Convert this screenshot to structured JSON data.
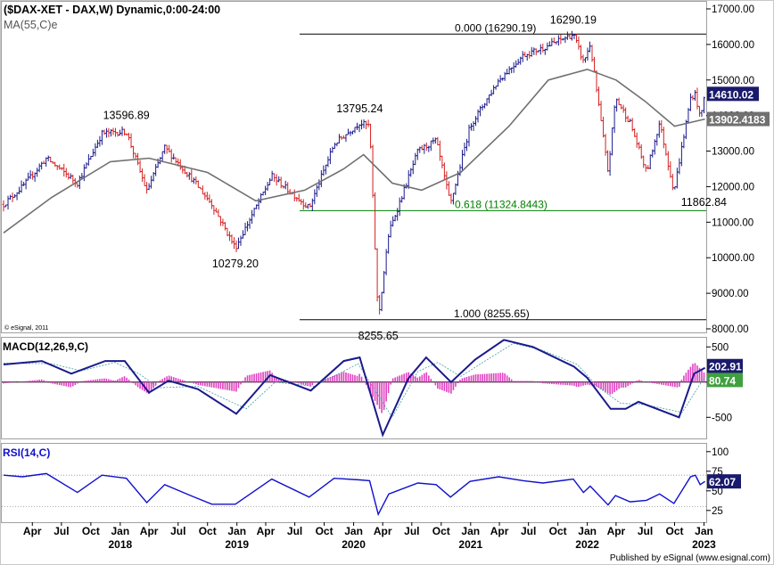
{
  "header": {
    "title": "($DAX-XET - DAX,W) Dynamic,0:00-24:00",
    "ma_label": "MA(55,C)e",
    "copyright": "© eSignal, 2011",
    "published": "Published by eSignal (www.esignal.com)"
  },
  "colors": {
    "up_bar": "#1a1a8c",
    "down_bar": "#d42020",
    "ma_line": "#707070",
    "fib_green": "#008000",
    "macd_line": "#1a1a8c",
    "macd_hist": "#e040c0",
    "rsi_line": "#1010cc",
    "label_box": "#1a1a6c"
  },
  "chart_data": [
    {
      "type": "candlestick",
      "name": "price",
      "ylim": [
        7900,
        17200
      ],
      "y_ticks": [
        8000,
        9000,
        10000,
        11000,
        12000,
        13000,
        14000,
        15000,
        16000,
        17000
      ],
      "y_tick_labels": [
        "8000.00",
        "9000.00",
        "10000.00",
        "11000.00",
        "12000.00",
        "13000.00",
        "14000.00",
        "15000.00",
        "16000.00",
        "17000.00"
      ],
      "x_range": [
        "2017-01-01",
        "2023-01-08"
      ],
      "price_path": [
        [
          "2017-01-01",
          11500
        ],
        [
          "2017-03-01",
          12000
        ],
        [
          "2017-05-15",
          12800
        ],
        [
          "2017-08-20",
          12100
        ],
        [
          "2017-11-05",
          13500
        ],
        [
          "2018-01-20",
          13550
        ],
        [
          "2018-03-25",
          11870
        ],
        [
          "2018-05-20",
          13100
        ],
        [
          "2018-08-15",
          12200
        ],
        [
          "2018-10-15",
          11500
        ],
        [
          "2018-12-27",
          10279
        ],
        [
          "2019-04-20",
          12300
        ],
        [
          "2019-08-15",
          11400
        ],
        [
          "2019-11-01",
          13200
        ],
        [
          "2020-01-20",
          13795
        ],
        [
          "2020-02-20",
          13700
        ],
        [
          "2020-03-18",
          8255
        ],
        [
          "2020-04-20",
          10700
        ],
        [
          "2020-07-20",
          13000
        ],
        [
          "2020-09-15",
          13300
        ],
        [
          "2020-10-30",
          11500
        ],
        [
          "2020-12-30",
          13700
        ],
        [
          "2021-03-30",
          15000
        ],
        [
          "2021-06-15",
          15700
        ],
        [
          "2021-08-15",
          15900
        ],
        [
          "2021-11-18",
          16290
        ],
        [
          "2021-12-20",
          15500
        ],
        [
          "2022-01-10",
          16000
        ],
        [
          "2022-03-07",
          12400
        ],
        [
          "2022-03-30",
          14500
        ],
        [
          "2022-05-15",
          13800
        ],
        [
          "2022-07-05",
          12400
        ],
        [
          "2022-08-15",
          13800
        ],
        [
          "2022-09-29",
          11862
        ],
        [
          "2022-11-20",
          14500
        ],
        [
          "2022-12-05",
          14610
        ],
        [
          "2022-12-20",
          13900
        ],
        [
          "2023-01-04",
          14610
        ]
      ],
      "ma_path": [
        [
          "2017-01-01",
          10700
        ],
        [
          "2017-06-01",
          11700
        ],
        [
          "2017-12-01",
          12700
        ],
        [
          "2018-04-01",
          12800
        ],
        [
          "2018-10-01",
          12400
        ],
        [
          "2019-03-01",
          11600
        ],
        [
          "2019-08-01",
          11900
        ],
        [
          "2019-12-01",
          12500
        ],
        [
          "2020-02-01",
          12900
        ],
        [
          "2020-05-01",
          12100
        ],
        [
          "2020-08-01",
          11900
        ],
        [
          "2020-12-01",
          12400
        ],
        [
          "2021-05-01",
          13700
        ],
        [
          "2021-09-01",
          15000
        ],
        [
          "2022-01-01",
          15300
        ],
        [
          "2022-04-01",
          15000
        ],
        [
          "2022-07-01",
          14400
        ],
        [
          "2022-10-01",
          13700
        ],
        [
          "2023-01-04",
          13902
        ]
      ],
      "current_price_label": "14610.02",
      "current_ma_label": "13902.4183",
      "annotations": [
        {
          "text": "13596.89",
          "date": "2018-01-20",
          "value": 13596.89,
          "pos": "above"
        },
        {
          "text": "10279.20",
          "date": "2018-12-27",
          "value": 10279.2,
          "pos": "below"
        },
        {
          "text": "13795.24",
          "date": "2020-01-20",
          "value": 13795.24,
          "pos": "above"
        },
        {
          "text": "8255.65",
          "date": "2020-03-18",
          "value": 8255.65,
          "pos": "below"
        },
        {
          "text": "16290.19",
          "date": "2021-11-18",
          "value": 16290.19,
          "pos": "above"
        },
        {
          "text": "11862.84",
          "date": "2022-09-29",
          "value": 11862.84,
          "pos": "right"
        }
      ],
      "fib_levels": [
        {
          "label": "0.000 (16290.19)",
          "value": 16290.19,
          "color": "#000000"
        },
        {
          "label": "0.618 (11324.8443)",
          "value": 11324.8443,
          "color": "#008000"
        },
        {
          "label": "1.000 (8255.65)",
          "value": 8255.65,
          "color": "#000000"
        }
      ]
    },
    {
      "type": "macd",
      "name": "MACD(12,26,9,C)",
      "ylim": [
        -800,
        630
      ],
      "y_ticks": [
        500,
        0,
        -500
      ],
      "y_tick_labels": [
        "500",
        "0",
        "-500"
      ],
      "macd_path": [
        [
          "2017-01-01",
          250
        ],
        [
          "2017-05-01",
          300
        ],
        [
          "2017-08-01",
          120
        ],
        [
          "2017-11-15",
          300
        ],
        [
          "2018-01-15",
          300
        ],
        [
          "2018-04-01",
          -150
        ],
        [
          "2018-06-01",
          20
        ],
        [
          "2018-09-01",
          -100
        ],
        [
          "2018-12-30",
          -450
        ],
        [
          "2019-04-15",
          100
        ],
        [
          "2019-08-20",
          -120
        ],
        [
          "2019-12-01",
          300
        ],
        [
          "2020-01-20",
          350
        ],
        [
          "2020-04-01",
          -750
        ],
        [
          "2020-06-20",
          50
        ],
        [
          "2020-08-15",
          350
        ],
        [
          "2020-11-01",
          0
        ],
        [
          "2021-01-15",
          320
        ],
        [
          "2021-04-15",
          600
        ],
        [
          "2021-07-15",
          500
        ],
        [
          "2021-11-20",
          220
        ],
        [
          "2022-01-01",
          60
        ],
        [
          "2022-03-15",
          -380
        ],
        [
          "2022-05-01",
          -380
        ],
        [
          "2022-06-10",
          -280
        ],
        [
          "2022-10-15",
          -500
        ],
        [
          "2022-12-01",
          120
        ],
        [
          "2023-01-04",
          202.91
        ]
      ],
      "signal_path": [
        [
          "2017-01-01",
          270
        ],
        [
          "2017-06-01",
          260
        ],
        [
          "2017-09-01",
          160
        ],
        [
          "2017-12-15",
          280
        ],
        [
          "2018-03-01",
          120
        ],
        [
          "2018-05-01",
          -80
        ],
        [
          "2018-09-01",
          -60
        ],
        [
          "2019-01-30",
          -380
        ],
        [
          "2019-05-01",
          0
        ],
        [
          "2019-09-01",
          -60
        ],
        [
          "2020-01-15",
          260
        ],
        [
          "2020-05-01",
          -500
        ],
        [
          "2020-07-20",
          150
        ],
        [
          "2020-09-20",
          280
        ],
        [
          "2020-12-01",
          80
        ],
        [
          "2021-02-15",
          300
        ],
        [
          "2021-05-15",
          550
        ],
        [
          "2021-08-15",
          450
        ],
        [
          "2021-12-01",
          250
        ],
        [
          "2022-02-01",
          -60
        ],
        [
          "2022-04-15",
          -300
        ],
        [
          "2022-07-01",
          -320
        ],
        [
          "2022-10-25",
          -430
        ],
        [
          "2023-01-04",
          80.74
        ]
      ],
      "macd_label": "202.91",
      "signal_label": "80.74"
    },
    {
      "type": "line",
      "name": "RSI(14,C)",
      "ylim": [
        10,
        110
      ],
      "y_ticks": [
        100,
        75,
        50,
        25
      ],
      "y_tick_labels": [
        "100",
        "75",
        "50",
        "25"
      ],
      "overbought": 70,
      "oversold": 30,
      "rsi_path": [
        [
          "2017-01-01",
          70
        ],
        [
          "2017-03-01",
          68
        ],
        [
          "2017-05-15",
          72
        ],
        [
          "2017-08-20",
          48
        ],
        [
          "2017-11-05",
          70
        ],
        [
          "2018-01-20",
          66
        ],
        [
          "2018-03-25",
          35
        ],
        [
          "2018-05-20",
          58
        ],
        [
          "2018-08-15",
          43
        ],
        [
          "2018-10-15",
          33
        ],
        [
          "2018-12-27",
          33
        ],
        [
          "2019-04-20",
          65
        ],
        [
          "2019-08-15",
          42
        ],
        [
          "2019-11-01",
          66
        ],
        [
          "2020-01-20",
          64
        ],
        [
          "2020-02-20",
          63
        ],
        [
          "2020-03-18",
          20
        ],
        [
          "2020-04-20",
          46
        ],
        [
          "2020-07-20",
          60
        ],
        [
          "2020-09-15",
          58
        ],
        [
          "2020-10-30",
          42
        ],
        [
          "2020-12-30",
          62
        ],
        [
          "2021-03-30",
          68
        ],
        [
          "2021-06-15",
          63
        ],
        [
          "2021-08-15",
          60
        ],
        [
          "2021-11-18",
          65
        ],
        [
          "2021-12-20",
          48
        ],
        [
          "2022-01-10",
          56
        ],
        [
          "2022-03-07",
          32
        ],
        [
          "2022-03-30",
          44
        ],
        [
          "2022-05-15",
          36
        ],
        [
          "2022-07-05",
          38
        ],
        [
          "2022-08-15",
          46
        ],
        [
          "2022-09-29",
          34
        ],
        [
          "2022-11-20",
          68
        ],
        [
          "2022-12-05",
          70
        ],
        [
          "2022-12-20",
          58
        ],
        [
          "2023-01-04",
          62.07
        ]
      ],
      "rsi_label": "62.07"
    }
  ],
  "x_axis": {
    "month_labels": [
      {
        "text": "Apr",
        "date": "2017-04-01"
      },
      {
        "text": "Jul",
        "date": "2017-07-01"
      },
      {
        "text": "Oct",
        "date": "2017-10-01"
      },
      {
        "text": "Jan",
        "date": "2018-01-01"
      },
      {
        "text": "Apr",
        "date": "2018-04-01"
      },
      {
        "text": "Jul",
        "date": "2018-07-01"
      },
      {
        "text": "Oct",
        "date": "2018-10-01"
      },
      {
        "text": "Jan",
        "date": "2019-01-01"
      },
      {
        "text": "Apr",
        "date": "2019-04-01"
      },
      {
        "text": "Jul",
        "date": "2019-07-01"
      },
      {
        "text": "Oct",
        "date": "2019-10-01"
      },
      {
        "text": "Jan",
        "date": "2020-01-01"
      },
      {
        "text": "Apr",
        "date": "2020-04-01"
      },
      {
        "text": "Jul",
        "date": "2020-07-01"
      },
      {
        "text": "Oct",
        "date": "2020-10-01"
      },
      {
        "text": "Jan",
        "date": "2021-01-01"
      },
      {
        "text": "Apr",
        "date": "2021-04-01"
      },
      {
        "text": "Jul",
        "date": "2021-07-01"
      },
      {
        "text": "Oct",
        "date": "2021-10-01"
      },
      {
        "text": "Jan",
        "date": "2022-01-01"
      },
      {
        "text": "Apr",
        "date": "2022-04-01"
      },
      {
        "text": "Jul",
        "date": "2022-07-01"
      },
      {
        "text": "Oct",
        "date": "2022-10-01"
      },
      {
        "text": "Jan",
        "date": "2023-01-01"
      }
    ],
    "year_labels": [
      {
        "text": "2018",
        "date": "2018-01-01"
      },
      {
        "text": "2019",
        "date": "2019-01-01"
      },
      {
        "text": "2020",
        "date": "2020-01-01"
      },
      {
        "text": "2021",
        "date": "2021-01-01"
      },
      {
        "text": "2022",
        "date": "2022-01-01"
      },
      {
        "text": "2023",
        "date": "2023-01-01"
      }
    ]
  }
}
